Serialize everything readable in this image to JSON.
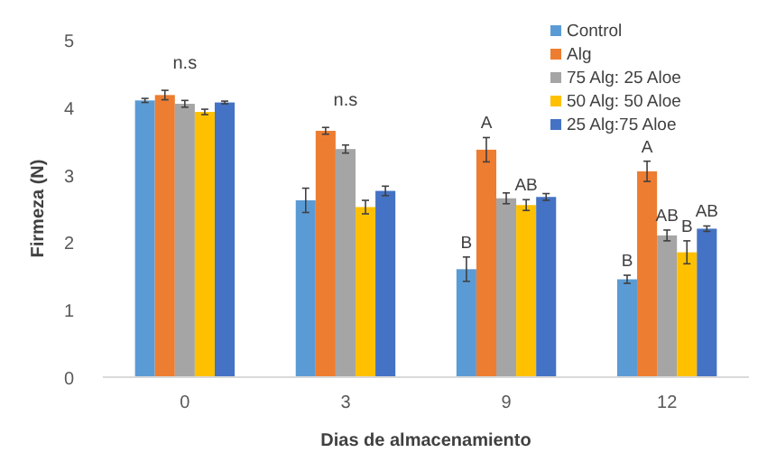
{
  "chart_data": {
    "type": "bar",
    "xlabel": "Dias de almacenamiento",
    "ylabel": "Firmeza (N)",
    "categories": [
      "0",
      "3",
      "9",
      "12"
    ],
    "series": [
      {
        "name": "Control",
        "color": "#5b9bd5",
        "values": [
          4.1,
          2.62,
          1.6,
          1.45
        ],
        "errors": [
          0.03,
          0.18,
          0.18,
          0.06
        ],
        "value_labels": [
          null,
          null,
          "B",
          "B"
        ]
      },
      {
        "name": "Alg",
        "color": "#ed7d31",
        "values": [
          4.18,
          3.65,
          3.37,
          3.05
        ],
        "errors": [
          0.07,
          0.05,
          0.18,
          0.15
        ],
        "value_labels": [
          null,
          null,
          "A",
          "A"
        ]
      },
      {
        "name": "75 Alg: 25 Aloe",
        "color": "#a5a5a5",
        "values": [
          4.05,
          3.38,
          2.65,
          2.1
        ],
        "errors": [
          0.05,
          0.06,
          0.08,
          0.08
        ],
        "value_labels": [
          null,
          null,
          null,
          "AB"
        ]
      },
      {
        "name": "50 Alg: 50 Aloe",
        "color": "#ffc000",
        "values": [
          3.93,
          2.52,
          2.55,
          1.85
        ],
        "errors": [
          0.04,
          0.1,
          0.08,
          0.17
        ],
        "value_labels": [
          null,
          null,
          "AB",
          "B"
        ]
      },
      {
        "name": "25 Alg:75 Aloe",
        "color": "#4472c4",
        "values": [
          4.07,
          2.76,
          2.67,
          2.2
        ],
        "errors": [
          0.02,
          0.07,
          0.05,
          0.04
        ],
        "value_labels": [
          null,
          null,
          null,
          "AB"
        ]
      }
    ],
    "annotations": [
      "n.s",
      "n.s"
    ],
    "ylim": [
      0,
      5
    ],
    "yticks": [
      0,
      1,
      2,
      3,
      4,
      5
    ],
    "legend": "top right"
  }
}
